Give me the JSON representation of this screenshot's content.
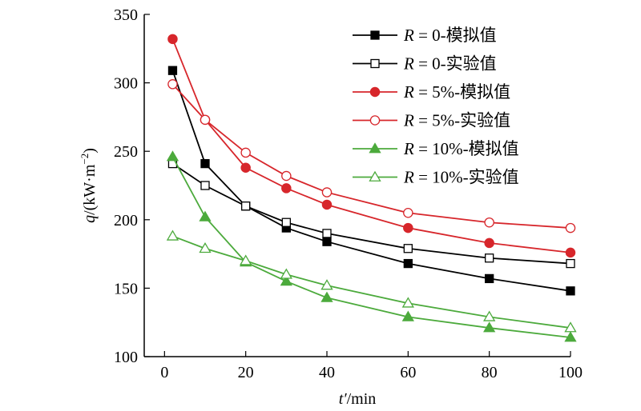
{
  "chart_data": {
    "type": "line",
    "xlabel": {
      "var": "t′",
      "unit": "/min"
    },
    "ylabel": {
      "var": "q",
      "unit": "/(kW·m",
      "sup": "−2",
      "close": ")"
    },
    "xlim": [
      -5,
      100
    ],
    "ylim": [
      100,
      350
    ],
    "xticks": [
      0,
      20,
      40,
      60,
      80,
      100
    ],
    "yticks": [
      100,
      150,
      200,
      250,
      300,
      350
    ],
    "legend_position": "top-right",
    "series": [
      {
        "var": "R",
        "name": " = 0-模拟值",
        "color": "#000000",
        "marker": "square",
        "filled": true,
        "x": [
          2,
          10,
          20,
          30,
          40,
          60,
          80,
          100
        ],
        "y": [
          309,
          241,
          210,
          194,
          184,
          168,
          157,
          148
        ]
      },
      {
        "var": "R",
        "name": " = 0-实验值",
        "color": "#000000",
        "marker": "square",
        "filled": false,
        "x": [
          2,
          10,
          20,
          30,
          40,
          60,
          80,
          100
        ],
        "y": [
          241,
          225,
          210,
          198,
          190,
          179,
          172,
          168
        ]
      },
      {
        "var": "R",
        "name": " = 5%-模拟值",
        "color": "#d7262b",
        "marker": "circle",
        "filled": true,
        "x": [
          2,
          10,
          20,
          30,
          40,
          60,
          80,
          100
        ],
        "y": [
          332,
          273,
          238,
          223,
          211,
          194,
          183,
          176
        ]
      },
      {
        "var": "R",
        "name": " = 5%-实验值",
        "color": "#d7262b",
        "marker": "circle",
        "filled": false,
        "x": [
          2,
          10,
          20,
          30,
          40,
          60,
          80,
          100
        ],
        "y": [
          299,
          273,
          249,
          232,
          220,
          205,
          198,
          194
        ]
      },
      {
        "var": "R",
        "name": " = 10%-模拟值",
        "color": "#4caa3c",
        "marker": "triangle",
        "filled": true,
        "x": [
          2,
          10,
          20,
          30,
          40,
          60,
          80,
          100
        ],
        "y": [
          246,
          202,
          169,
          155,
          143,
          129,
          121,
          114
        ]
      },
      {
        "var": "R",
        "name": " = 10%-实验值",
        "color": "#4caa3c",
        "marker": "triangle",
        "filled": false,
        "x": [
          2,
          10,
          20,
          30,
          40,
          60,
          80,
          100
        ],
        "y": [
          188,
          179,
          170,
          160,
          152,
          139,
          129,
          121
        ]
      }
    ]
  }
}
